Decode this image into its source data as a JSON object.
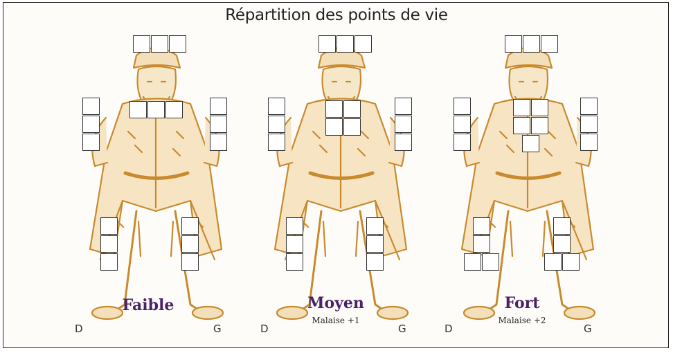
{
  "title": "Répartition des points de vie",
  "colors": {
    "ink": "#c98a2e",
    "label": "#4a2266",
    "frame": "#222222"
  },
  "figures": [
    {
      "label": "Faible",
      "sublabel": "",
      "left_side": "D",
      "right_side": "G",
      "boxes": {
        "head": 3,
        "arm_right": 3,
        "torso": 3,
        "arm_left": 3,
        "leg_right": 3,
        "leg_left": 3
      }
    },
    {
      "label": "Moyen",
      "sublabel": "Malaise +1",
      "left_side": "D",
      "right_side": "G",
      "boxes": {
        "head": 3,
        "arm_right": 3,
        "torso": 4,
        "arm_left": 3,
        "leg_right": 3,
        "leg_left": 3
      }
    },
    {
      "label": "Fort",
      "sublabel": "Malaise +2",
      "left_side": "D",
      "right_side": "G",
      "boxes": {
        "head": 3,
        "arm_right": 3,
        "torso": 5,
        "arm_left": 3,
        "leg_right": 4,
        "leg_left": 4
      }
    }
  ]
}
